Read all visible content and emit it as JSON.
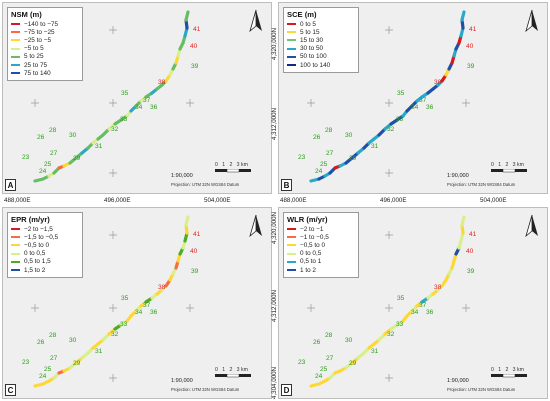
{
  "colors": {
    "coast": "#4a4a4a",
    "land": "#efefef",
    "grid_mark": "#9a9a9a",
    "label_green": "#2e9e1e",
    "label_red": "#e02424"
  },
  "icons": {
    "north_arrow": "north-arrow-icon"
  },
  "transect_labels": [
    {
      "text": "41",
      "color": "red"
    },
    {
      "text": "40",
      "color": "red"
    },
    {
      "text": "39",
      "color": "green"
    },
    {
      "text": "38",
      "color": "red"
    },
    {
      "text": "37",
      "color": "green"
    },
    {
      "text": "36",
      "color": "green"
    },
    {
      "text": "35",
      "color": "green"
    },
    {
      "text": "34",
      "color": "green"
    },
    {
      "text": "33",
      "color": "green"
    },
    {
      "text": "32",
      "color": "green"
    },
    {
      "text": "31",
      "color": "green"
    },
    {
      "text": "30",
      "color": "green"
    },
    {
      "text": "29",
      "color": "green"
    },
    {
      "text": "28",
      "color": "green"
    },
    {
      "text": "27",
      "color": "green"
    },
    {
      "text": "26",
      "color": "green"
    },
    {
      "text": "25",
      "color": "green"
    },
    {
      "text": "24",
      "color": "green"
    },
    {
      "text": "23",
      "color": "green"
    }
  ],
  "scale": {
    "ratio": "1:90,000",
    "ticks": [
      "0",
      "1",
      "2",
      "3 km"
    ],
    "projection": "Projection: UTM 32N WGS84 Datum"
  },
  "axis": {
    "x_labels": [
      "488,000E",
      "496,000E",
      "504,000E"
    ],
    "y_labels_top": [
      "4,320,000N",
      "4,312,000N"
    ],
    "y_labels_bottom": [
      "4,320,000N",
      "4,312,000N",
      "4,304,000N"
    ]
  },
  "panels": [
    {
      "letter": "A",
      "title": "NSM (m)",
      "legend": [
        {
          "label": "−140 to −75",
          "color": "#d7191c"
        },
        {
          "label": "−75 to −25",
          "color": "#f46d43"
        },
        {
          "label": "−25 to −5",
          "color": "#fdd835"
        },
        {
          "label": "−5 to 5",
          "color": "#d9ef8b"
        },
        {
          "label": "5 to 25",
          "color": "#66bd63"
        },
        {
          "label": "25 to 75",
          "color": "#29a8c9"
        },
        {
          "label": "75 to 140",
          "color": "#1f4fa8"
        }
      ],
      "segment_classes": [
        4,
        4,
        3,
        4,
        1,
        2,
        4,
        4,
        5,
        4,
        3,
        4,
        4,
        3,
        4,
        4,
        3,
        5,
        4,
        3,
        4,
        5,
        4,
        4,
        2,
        3,
        4,
        2,
        3,
        4,
        4,
        5,
        6,
        4
      ]
    },
    {
      "letter": "B",
      "title": "SCE (m)",
      "legend": [
        {
          "label": "0 to 5",
          "color": "#d7191c"
        },
        {
          "label": "5 to 15",
          "color": "#fdd835"
        },
        {
          "label": "15 to 30",
          "color": "#74c476"
        },
        {
          "label": "30 to 50",
          "color": "#29a8c9"
        },
        {
          "label": "50 to 100",
          "color": "#1f4fa8"
        },
        {
          "label": "100 to 140",
          "color": "#0c2c84"
        }
      ],
      "segment_classes": [
        3,
        4,
        3,
        4,
        0,
        3,
        4,
        4,
        3,
        4,
        3,
        3,
        4,
        3,
        4,
        4,
        3,
        4,
        4,
        3,
        3,
        4,
        4,
        3,
        0,
        1,
        4,
        0,
        3,
        4,
        0,
        3,
        4,
        3
      ]
    },
    {
      "letter": "C",
      "title": "EPR (m/yr)",
      "legend": [
        {
          "label": "−2 to −1,5",
          "color": "#d7191c"
        },
        {
          "label": "−1,5 to −0,5",
          "color": "#f46d43"
        },
        {
          "label": "−0,5 to 0",
          "color": "#fdd835"
        },
        {
          "label": "0 to 0,5",
          "color": "#d9ef8b"
        },
        {
          "label": "0,5 to 1,5",
          "color": "#4dac26"
        },
        {
          "label": "1,5 to 2",
          "color": "#1f4fa8"
        }
      ],
      "segment_classes": [
        2,
        2,
        2,
        3,
        1,
        2,
        3,
        2,
        3,
        3,
        2,
        2,
        3,
        2,
        4,
        3,
        2,
        2,
        3,
        2,
        4,
        3,
        2,
        3,
        1,
        2,
        3,
        1,
        2,
        4,
        3,
        4,
        2,
        3
      ]
    },
    {
      "letter": "D",
      "title": "WLR (m/yr)",
      "legend": [
        {
          "label": "−2 to −1",
          "color": "#d7191c"
        },
        {
          "label": "−1 to −0,5",
          "color": "#f46d43"
        },
        {
          "label": "−0,5 to 0",
          "color": "#fdd835"
        },
        {
          "label": "0 to 0,5",
          "color": "#d9ef8b"
        },
        {
          "label": "0,5 to 1",
          "color": "#29a8c9"
        },
        {
          "label": "1 to 2",
          "color": "#1f4fa8"
        }
      ],
      "segment_classes": [
        2,
        2,
        2,
        3,
        2,
        2,
        3,
        2,
        3,
        3,
        2,
        2,
        3,
        2,
        3,
        3,
        2,
        2,
        3,
        2,
        4,
        3,
        2,
        3,
        2,
        2,
        3,
        2,
        2,
        5,
        3,
        3,
        2,
        3
      ]
    }
  ]
}
